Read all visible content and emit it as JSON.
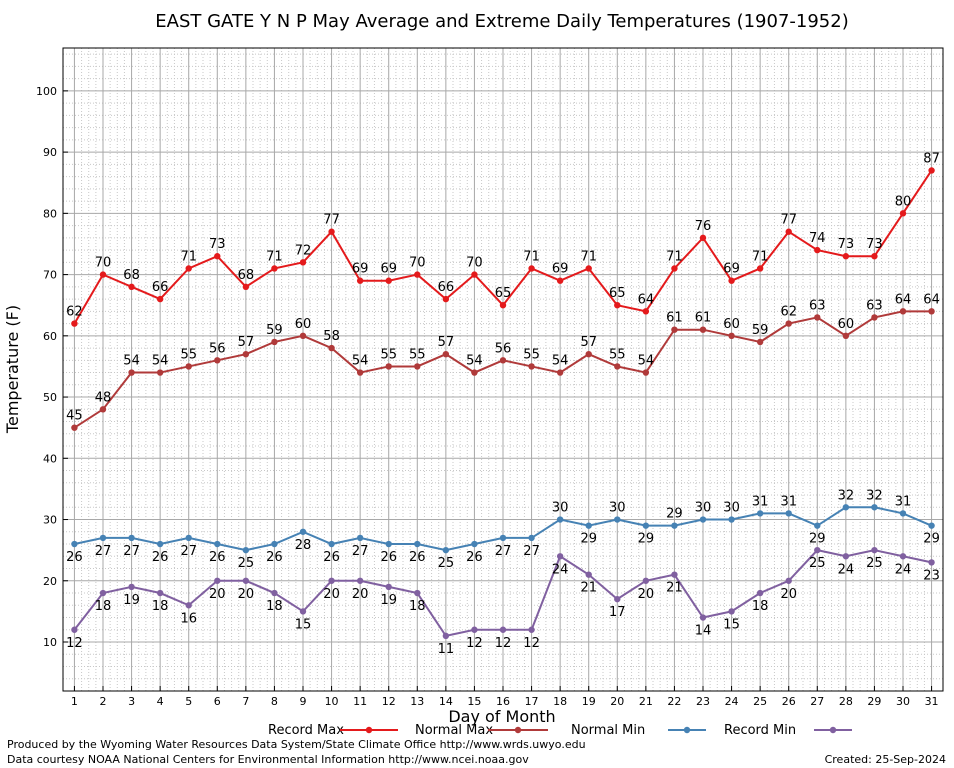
{
  "chart_data": {
    "type": "line",
    "title": "EAST GATE Y N P May Average and Extreme Daily Temperatures (1907-1952)",
    "xlabel": "Day of Month",
    "ylabel": "Temperature (F)",
    "xlim": [
      0.6,
      31.4
    ],
    "ylim": [
      2,
      107
    ],
    "yticks": [
      10,
      20,
      30,
      40,
      50,
      60,
      70,
      80,
      90,
      100
    ],
    "x": [
      1,
      2,
      3,
      4,
      5,
      6,
      7,
      8,
      9,
      10,
      11,
      12,
      13,
      14,
      15,
      16,
      17,
      18,
      19,
      20,
      21,
      22,
      23,
      24,
      25,
      26,
      27,
      28,
      29,
      30,
      31
    ],
    "grid": true,
    "legend_position": "bottom",
    "series": [
      {
        "name": "Record Max",
        "color": "#e41a1c",
        "label_position": "above",
        "values": [
          62,
          70,
          68,
          66,
          71,
          73,
          68,
          71,
          72,
          77,
          69,
          69,
          70,
          66,
          70,
          65,
          71,
          69,
          71,
          65,
          64,
          71,
          76,
          69,
          71,
          77,
          74,
          73,
          73,
          80,
          87
        ]
      },
      {
        "name": "Normal Max",
        "color": "#b03a3a",
        "label_position": "above",
        "values": [
          45,
          48,
          54,
          54,
          55,
          56,
          57,
          59,
          60,
          58,
          54,
          55,
          55,
          57,
          54,
          56,
          55,
          54,
          57,
          55,
          54,
          61,
          61,
          60,
          59,
          62,
          63,
          60,
          63,
          64,
          64
        ]
      },
      {
        "name": "Normal Min",
        "color": "#4682b4",
        "label_position": "mixed",
        "label_above_days": [
          18,
          20,
          22,
          23,
          24,
          25,
          26,
          28,
          29,
          30
        ],
        "values": [
          26,
          27,
          27,
          26,
          27,
          26,
          25,
          26,
          28,
          26,
          27,
          26,
          26,
          25,
          26,
          27,
          27,
          30,
          29,
          30,
          29,
          29,
          30,
          30,
          31,
          31,
          29,
          32,
          32,
          31,
          29
        ]
      },
      {
        "name": "Record Min",
        "color": "#8060a0",
        "label_position": "below",
        "values": [
          12,
          18,
          19,
          18,
          16,
          20,
          20,
          18,
          15,
          20,
          20,
          19,
          18,
          11,
          12,
          12,
          12,
          24,
          21,
          17,
          20,
          21,
          14,
          15,
          18,
          20,
          25,
          24,
          25,
          24,
          23
        ]
      }
    ]
  },
  "footer": {
    "credit_line1": "Produced by the Wyoming Water Resources Data System/State Climate Office http://www.wrds.uwyo.edu",
    "credit_line2": "Data courtesy NOAA National Centers for Environmental Information http://www.ncei.noaa.gov",
    "created": "Created:  25-Sep-2024"
  }
}
